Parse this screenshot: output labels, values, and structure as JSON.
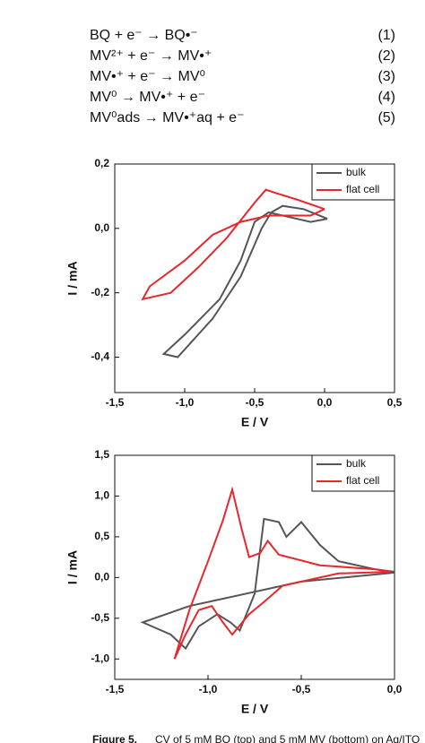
{
  "equations": [
    {
      "text": "BQ + e⁻ → BQ•⁻",
      "number": "(1)"
    },
    {
      "text": "MV²⁺ + e⁻ → MV•⁺",
      "number": "(2)"
    },
    {
      "text": "MV•⁺ + e⁻ → MV⁰",
      "number": "(3)"
    },
    {
      "text": "MV⁰ → MV•⁺ + e⁻",
      "number": "(4)"
    },
    {
      "text": "MV⁰ads → MV•⁺aq + e⁻",
      "number": "(5)"
    }
  ],
  "chart_data": [
    {
      "type": "line",
      "xlabel": "E / V",
      "ylabel": "I / mA",
      "xlim": [
        -1.5,
        0.5
      ],
      "ylim": [
        -0.51,
        0.2
      ],
      "xticks": [
        {
          "value": -1.5,
          "label": "-1,5"
        },
        {
          "value": -1.0,
          "label": "-1,0"
        },
        {
          "value": -0.5,
          "label": "-0,5"
        },
        {
          "value": 0,
          "label": "0,0"
        },
        {
          "value": 0.5,
          "label": "0,5"
        }
      ],
      "yticks": [
        {
          "value": -0.4,
          "label": "-0,4"
        },
        {
          "value": -0.2,
          "label": "-0,2"
        },
        {
          "value": 0,
          "label": "0,0"
        },
        {
          "value": 0.2,
          "label": "0,2"
        }
      ],
      "legend": "upper right",
      "series": [
        {
          "name": "bulk",
          "color": "#555555",
          "x": [
            0.02,
            -0.15,
            -0.3,
            -0.38,
            -0.45,
            -0.6,
            -0.8,
            -1.05,
            -1.15,
            -1.0,
            -0.75,
            -0.6,
            -0.5,
            -0.4,
            -0.1,
            0.02
          ],
          "values": [
            0.03,
            0.06,
            0.07,
            0.05,
            0.0,
            -0.15,
            -0.28,
            -0.4,
            -0.39,
            -0.33,
            -0.22,
            -0.1,
            0.02,
            0.05,
            0.02,
            0.03
          ]
        },
        {
          "name": "flat cell",
          "color": "#e8262b",
          "x": [
            0.0,
            -0.2,
            -0.35,
            -0.42,
            -0.5,
            -0.7,
            -0.9,
            -1.1,
            -1.3,
            -1.25,
            -1.0,
            -0.8,
            -0.6,
            -0.4,
            -0.1,
            0.0
          ],
          "values": [
            0.06,
            0.09,
            0.11,
            0.12,
            0.08,
            -0.03,
            -0.12,
            -0.2,
            -0.22,
            -0.18,
            -0.1,
            -0.02,
            0.02,
            0.04,
            0.04,
            0.06
          ]
        }
      ]
    },
    {
      "type": "line",
      "xlabel": "E / V",
      "ylabel": "I / mA",
      "xlim": [
        -1.5,
        0
      ],
      "ylim": [
        -1.25,
        1.5
      ],
      "xticks": [
        {
          "value": -1.5,
          "label": "-1,5"
        },
        {
          "value": -1.0,
          "label": "-1,0"
        },
        {
          "value": -0.5,
          "label": "-0,5"
        },
        {
          "value": 0,
          "label": "0,0"
        }
      ],
      "yticks": [
        {
          "value": -1.0,
          "label": "-1,0"
        },
        {
          "value": -0.5,
          "label": "-0,5"
        },
        {
          "value": 0,
          "label": "0,0"
        },
        {
          "value": 0.5,
          "label": "0,5"
        },
        {
          "value": 1.0,
          "label": "1,0"
        },
        {
          "value": 1.5,
          "label": "1,5"
        }
      ],
      "legend": "upper right",
      "series": [
        {
          "name": "bulk",
          "color": "#555555",
          "x": [
            0.0,
            -0.5,
            -0.9,
            -1.1,
            -1.35,
            -1.2,
            -1.12,
            -1.05,
            -0.95,
            -0.88,
            -0.83,
            -0.75,
            -0.7,
            -0.62,
            -0.58,
            -0.5,
            -0.4,
            -0.3,
            -0.1,
            0.0
          ],
          "values": [
            0.06,
            -0.05,
            -0.25,
            -0.35,
            -0.55,
            -0.7,
            -0.87,
            -0.6,
            -0.45,
            -0.55,
            -0.65,
            -0.2,
            0.72,
            0.68,
            0.5,
            0.68,
            0.4,
            0.2,
            0.1,
            0.07
          ]
        },
        {
          "name": "flat cell",
          "color": "#e8262b",
          "x": [
            -1.18,
            -1.1,
            -1.0,
            -0.92,
            -0.87,
            -0.82,
            -0.78,
            -0.72,
            -0.68,
            -0.62,
            -0.4,
            -0.1,
            -0.02,
            -0.3,
            -0.6,
            -0.7,
            -0.78,
            -0.87,
            -0.92,
            -0.98,
            -1.05,
            -1.12,
            -1.18
          ],
          "values": [
            -1.0,
            -0.4,
            0.2,
            0.7,
            1.08,
            0.6,
            0.25,
            0.3,
            0.45,
            0.28,
            0.15,
            0.1,
            0.07,
            0.05,
            -0.1,
            -0.3,
            -0.45,
            -0.7,
            -0.55,
            -0.35,
            -0.4,
            -0.7,
            -1.0
          ]
        }
      ]
    }
  ],
  "caption": {
    "label": "Figure 5.",
    "text": "CV of 5 mM BQ (top) and 5 mM MV (bottom) on Ag/ITO"
  }
}
